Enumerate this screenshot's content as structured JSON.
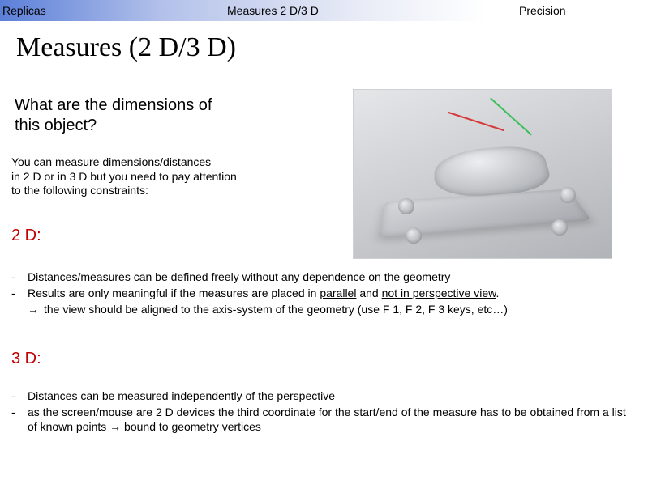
{
  "header": {
    "tabs": {
      "left": "Replicas",
      "mid": "Measures 2 D/3 D",
      "right": "Precision"
    },
    "gradient": [
      "#5b7fd8",
      "#b3c1ea",
      "#e8ebf6",
      "#ffffff"
    ]
  },
  "title": "Measures (2 D/3 D)",
  "subtitle_line1": "What are the dimensions of",
  "subtitle_line2": "this object?",
  "intro_line1": "You can measure dimensions/distances",
  "intro_line2": "in 2 D or in 3 D but you need to pay attention",
  "intro_line3": "to the following constraints:",
  "sections": {
    "twoD": {
      "label": "2 D:",
      "bullets": [
        "Distances/measures can be defined freely without any dependence on the geometry",
        "Results are only meaningful if the measures are placed in parallel and not in perspective view."
      ],
      "arrow_line": "the view should be aligned to the axis-system of the geometry (use F 1, F 2, F 3 keys, etc…)",
      "emphasis": {
        "parallel": "parallel",
        "not_perspective": "not in perspective view"
      }
    },
    "threeD": {
      "label": "3 D:",
      "bullets": [
        "Distances can be measured independently of the perspective",
        "as the screen/mouse are 2 D devices the third coordinate for the start/end of the measure has to be obtained from a list of known points "
      ],
      "arrow_tail": " bound to geometry vertices"
    }
  },
  "colors": {
    "section_label": "#c00000",
    "text": "#000000",
    "dim_red": "#d63a3a",
    "dim_green": "#3bbf5a"
  },
  "cad": {
    "description": "3D CAD render of a pump housing on a square base plate with corner bolt bosses and two colored dimension lines",
    "bg_gradient": [
      "#e4e6e8",
      "#c8cace",
      "#b0b3b7"
    ]
  }
}
